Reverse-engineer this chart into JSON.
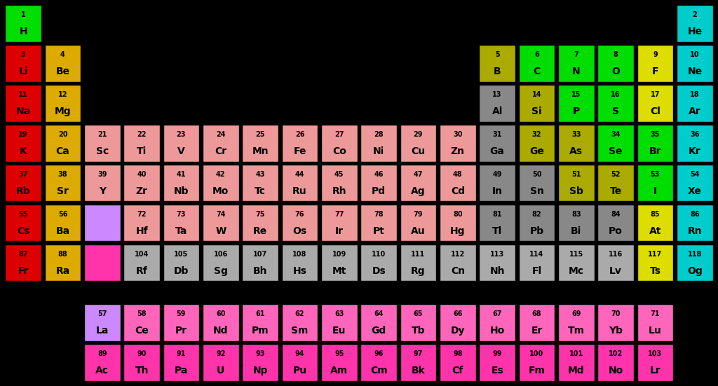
{
  "background": "#000000",
  "cell_edge": "#000000",
  "elements": [
    {
      "num": 1,
      "sym": "H",
      "row": 1,
      "col": 1,
      "color": "#00dd00"
    },
    {
      "num": 2,
      "sym": "He",
      "row": 1,
      "col": 18,
      "color": "#00cccc"
    },
    {
      "num": 3,
      "sym": "Li",
      "row": 2,
      "col": 1,
      "color": "#dd0000"
    },
    {
      "num": 4,
      "sym": "Be",
      "row": 2,
      "col": 2,
      "color": "#ddaa00"
    },
    {
      "num": 5,
      "sym": "B",
      "row": 2,
      "col": 13,
      "color": "#aaaa00"
    },
    {
      "num": 6,
      "sym": "C",
      "row": 2,
      "col": 14,
      "color": "#00dd00"
    },
    {
      "num": 7,
      "sym": "N",
      "row": 2,
      "col": 15,
      "color": "#00dd00"
    },
    {
      "num": 8,
      "sym": "O",
      "row": 2,
      "col": 16,
      "color": "#00dd00"
    },
    {
      "num": 9,
      "sym": "F",
      "row": 2,
      "col": 17,
      "color": "#dddd00"
    },
    {
      "num": 10,
      "sym": "Ne",
      "row": 2,
      "col": 18,
      "color": "#00cccc"
    },
    {
      "num": 11,
      "sym": "Na",
      "row": 3,
      "col": 1,
      "color": "#dd0000"
    },
    {
      "num": 12,
      "sym": "Mg",
      "row": 3,
      "col": 2,
      "color": "#ddaa00"
    },
    {
      "num": 13,
      "sym": "Al",
      "row": 3,
      "col": 13,
      "color": "#888888"
    },
    {
      "num": 14,
      "sym": "Si",
      "row": 3,
      "col": 14,
      "color": "#aaaa00"
    },
    {
      "num": 15,
      "sym": "P",
      "row": 3,
      "col": 15,
      "color": "#00dd00"
    },
    {
      "num": 16,
      "sym": "S",
      "row": 3,
      "col": 16,
      "color": "#00dd00"
    },
    {
      "num": 17,
      "sym": "Cl",
      "row": 3,
      "col": 17,
      "color": "#dddd00"
    },
    {
      "num": 18,
      "sym": "Ar",
      "row": 3,
      "col": 18,
      "color": "#00cccc"
    },
    {
      "num": 19,
      "sym": "K",
      "row": 4,
      "col": 1,
      "color": "#dd0000"
    },
    {
      "num": 20,
      "sym": "Ca",
      "row": 4,
      "col": 2,
      "color": "#ddaa00"
    },
    {
      "num": 21,
      "sym": "Sc",
      "row": 4,
      "col": 3,
      "color": "#ee9999"
    },
    {
      "num": 22,
      "sym": "Ti",
      "row": 4,
      "col": 4,
      "color": "#ee9999"
    },
    {
      "num": 23,
      "sym": "V",
      "row": 4,
      "col": 5,
      "color": "#ee9999"
    },
    {
      "num": 24,
      "sym": "Cr",
      "row": 4,
      "col": 6,
      "color": "#ee9999"
    },
    {
      "num": 25,
      "sym": "Mn",
      "row": 4,
      "col": 7,
      "color": "#ee9999"
    },
    {
      "num": 26,
      "sym": "Fe",
      "row": 4,
      "col": 8,
      "color": "#ee9999"
    },
    {
      "num": 27,
      "sym": "Co",
      "row": 4,
      "col": 9,
      "color": "#ee9999"
    },
    {
      "num": 28,
      "sym": "Ni",
      "row": 4,
      "col": 10,
      "color": "#ee9999"
    },
    {
      "num": 29,
      "sym": "Cu",
      "row": 4,
      "col": 11,
      "color": "#ee9999"
    },
    {
      "num": 30,
      "sym": "Zn",
      "row": 4,
      "col": 12,
      "color": "#ee9999"
    },
    {
      "num": 31,
      "sym": "Ga",
      "row": 4,
      "col": 13,
      "color": "#888888"
    },
    {
      "num": 32,
      "sym": "Ge",
      "row": 4,
      "col": 14,
      "color": "#aaaa00"
    },
    {
      "num": 33,
      "sym": "As",
      "row": 4,
      "col": 15,
      "color": "#aaaa00"
    },
    {
      "num": 34,
      "sym": "Se",
      "row": 4,
      "col": 16,
      "color": "#00dd00"
    },
    {
      "num": 35,
      "sym": "Br",
      "row": 4,
      "col": 17,
      "color": "#00dd00"
    },
    {
      "num": 36,
      "sym": "Kr",
      "row": 4,
      "col": 18,
      "color": "#00cccc"
    },
    {
      "num": 37,
      "sym": "Rb",
      "row": 5,
      "col": 1,
      "color": "#dd0000"
    },
    {
      "num": 38,
      "sym": "Sr",
      "row": 5,
      "col": 2,
      "color": "#ddaa00"
    },
    {
      "num": 39,
      "sym": "Y",
      "row": 5,
      "col": 3,
      "color": "#ee9999"
    },
    {
      "num": 40,
      "sym": "Zr",
      "row": 5,
      "col": 4,
      "color": "#ee9999"
    },
    {
      "num": 41,
      "sym": "Nb",
      "row": 5,
      "col": 5,
      "color": "#ee9999"
    },
    {
      "num": 42,
      "sym": "Mo",
      "row": 5,
      "col": 6,
      "color": "#ee9999"
    },
    {
      "num": 43,
      "sym": "Tc",
      "row": 5,
      "col": 7,
      "color": "#ee9999"
    },
    {
      "num": 44,
      "sym": "Ru",
      "row": 5,
      "col": 8,
      "color": "#ee9999"
    },
    {
      "num": 45,
      "sym": "Rh",
      "row": 5,
      "col": 9,
      "color": "#ee9999"
    },
    {
      "num": 46,
      "sym": "Pd",
      "row": 5,
      "col": 10,
      "color": "#ee9999"
    },
    {
      "num": 47,
      "sym": "Ag",
      "row": 5,
      "col": 11,
      "color": "#ee9999"
    },
    {
      "num": 48,
      "sym": "Cd",
      "row": 5,
      "col": 12,
      "color": "#ee9999"
    },
    {
      "num": 49,
      "sym": "In",
      "row": 5,
      "col": 13,
      "color": "#888888"
    },
    {
      "num": 50,
      "sym": "Sn",
      "row": 5,
      "col": 14,
      "color": "#888888"
    },
    {
      "num": 51,
      "sym": "Sb",
      "row": 5,
      "col": 15,
      "color": "#aaaa00"
    },
    {
      "num": 52,
      "sym": "Te",
      "row": 5,
      "col": 16,
      "color": "#aaaa00"
    },
    {
      "num": 53,
      "sym": "I",
      "row": 5,
      "col": 17,
      "color": "#00dd00"
    },
    {
      "num": 54,
      "sym": "Xe",
      "row": 5,
      "col": 18,
      "color": "#00cccc"
    },
    {
      "num": 55,
      "sym": "Cs",
      "row": 6,
      "col": 1,
      "color": "#dd0000"
    },
    {
      "num": 56,
      "sym": "Ba",
      "row": 6,
      "col": 2,
      "color": "#ddaa00"
    },
    {
      "num": 72,
      "sym": "Hf",
      "row": 6,
      "col": 4,
      "color": "#ee9999"
    },
    {
      "num": 73,
      "sym": "Ta",
      "row": 6,
      "col": 5,
      "color": "#ee9999"
    },
    {
      "num": 74,
      "sym": "W",
      "row": 6,
      "col": 6,
      "color": "#ee9999"
    },
    {
      "num": 75,
      "sym": "Re",
      "row": 6,
      "col": 7,
      "color": "#ee9999"
    },
    {
      "num": 76,
      "sym": "Os",
      "row": 6,
      "col": 8,
      "color": "#ee9999"
    },
    {
      "num": 77,
      "sym": "Ir",
      "row": 6,
      "col": 9,
      "color": "#ee9999"
    },
    {
      "num": 78,
      "sym": "Pt",
      "row": 6,
      "col": 10,
      "color": "#ee9999"
    },
    {
      "num": 79,
      "sym": "Au",
      "row": 6,
      "col": 11,
      "color": "#ee9999"
    },
    {
      "num": 80,
      "sym": "Hg",
      "row": 6,
      "col": 12,
      "color": "#ee9999"
    },
    {
      "num": 81,
      "sym": "Tl",
      "row": 6,
      "col": 13,
      "color": "#888888"
    },
    {
      "num": 82,
      "sym": "Pb",
      "row": 6,
      "col": 14,
      "color": "#888888"
    },
    {
      "num": 83,
      "sym": "Bi",
      "row": 6,
      "col": 15,
      "color": "#888888"
    },
    {
      "num": 84,
      "sym": "Po",
      "row": 6,
      "col": 16,
      "color": "#888888"
    },
    {
      "num": 85,
      "sym": "At",
      "row": 6,
      "col": 17,
      "color": "#dddd00"
    },
    {
      "num": 86,
      "sym": "Rn",
      "row": 6,
      "col": 18,
      "color": "#00cccc"
    },
    {
      "num": 87,
      "sym": "Fr",
      "row": 7,
      "col": 1,
      "color": "#dd0000"
    },
    {
      "num": 88,
      "sym": "Ra",
      "row": 7,
      "col": 2,
      "color": "#ddaa00"
    },
    {
      "num": 104,
      "sym": "Rf",
      "row": 7,
      "col": 4,
      "color": "#aaaaaa"
    },
    {
      "num": 105,
      "sym": "Db",
      "row": 7,
      "col": 5,
      "color": "#aaaaaa"
    },
    {
      "num": 106,
      "sym": "Sg",
      "row": 7,
      "col": 6,
      "color": "#aaaaaa"
    },
    {
      "num": 107,
      "sym": "Bh",
      "row": 7,
      "col": 7,
      "color": "#aaaaaa"
    },
    {
      "num": 108,
      "sym": "Hs",
      "row": 7,
      "col": 8,
      "color": "#aaaaaa"
    },
    {
      "num": 109,
      "sym": "Mt",
      "row": 7,
      "col": 9,
      "color": "#aaaaaa"
    },
    {
      "num": 110,
      "sym": "Ds",
      "row": 7,
      "col": 10,
      "color": "#aaaaaa"
    },
    {
      "num": 111,
      "sym": "Rg",
      "row": 7,
      "col": 11,
      "color": "#aaaaaa"
    },
    {
      "num": 112,
      "sym": "Cn",
      "row": 7,
      "col": 12,
      "color": "#aaaaaa"
    },
    {
      "num": 113,
      "sym": "Nh",
      "row": 7,
      "col": 13,
      "color": "#aaaaaa"
    },
    {
      "num": 114,
      "sym": "Fl",
      "row": 7,
      "col": 14,
      "color": "#aaaaaa"
    },
    {
      "num": 115,
      "sym": "Mc",
      "row": 7,
      "col": 15,
      "color": "#aaaaaa"
    },
    {
      "num": 116,
      "sym": "Lv",
      "row": 7,
      "col": 16,
      "color": "#aaaaaa"
    },
    {
      "num": 117,
      "sym": "Ts",
      "row": 7,
      "col": 17,
      "color": "#dddd00"
    },
    {
      "num": 118,
      "sym": "Og",
      "row": 7,
      "col": 18,
      "color": "#00cccc"
    },
    {
      "num": 57,
      "sym": "La",
      "row": 9,
      "col": 3,
      "color": "#cc88ff"
    },
    {
      "num": 58,
      "sym": "Ce",
      "row": 9,
      "col": 4,
      "color": "#ff66bb"
    },
    {
      "num": 59,
      "sym": "Pr",
      "row": 9,
      "col": 5,
      "color": "#ff66bb"
    },
    {
      "num": 60,
      "sym": "Nd",
      "row": 9,
      "col": 6,
      "color": "#ff66bb"
    },
    {
      "num": 61,
      "sym": "Pm",
      "row": 9,
      "col": 7,
      "color": "#ff66bb"
    },
    {
      "num": 62,
      "sym": "Sm",
      "row": 9,
      "col": 8,
      "color": "#ff66bb"
    },
    {
      "num": 63,
      "sym": "Eu",
      "row": 9,
      "col": 9,
      "color": "#ff66bb"
    },
    {
      "num": 64,
      "sym": "Gd",
      "row": 9,
      "col": 10,
      "color": "#ff66bb"
    },
    {
      "num": 65,
      "sym": "Tb",
      "row": 9,
      "col": 11,
      "color": "#ff66bb"
    },
    {
      "num": 66,
      "sym": "Dy",
      "row": 9,
      "col": 12,
      "color": "#ff66bb"
    },
    {
      "num": 67,
      "sym": "Ho",
      "row": 9,
      "col": 13,
      "color": "#ff66bb"
    },
    {
      "num": 68,
      "sym": "Er",
      "row": 9,
      "col": 14,
      "color": "#ff66bb"
    },
    {
      "num": 69,
      "sym": "Tm",
      "row": 9,
      "col": 15,
      "color": "#ff66bb"
    },
    {
      "num": 70,
      "sym": "Yb",
      "row": 9,
      "col": 16,
      "color": "#ff66bb"
    },
    {
      "num": 71,
      "sym": "Lu",
      "row": 9,
      "col": 17,
      "color": "#ff66bb"
    },
    {
      "num": 89,
      "sym": "Ac",
      "row": 10,
      "col": 3,
      "color": "#ff33aa"
    },
    {
      "num": 90,
      "sym": "Th",
      "row": 10,
      "col": 4,
      "color": "#ff33aa"
    },
    {
      "num": 91,
      "sym": "Pa",
      "row": 10,
      "col": 5,
      "color": "#ff33aa"
    },
    {
      "num": 92,
      "sym": "U",
      "row": 10,
      "col": 6,
      "color": "#ff33aa"
    },
    {
      "num": 93,
      "sym": "Np",
      "row": 10,
      "col": 7,
      "color": "#ff33aa"
    },
    {
      "num": 94,
      "sym": "Pu",
      "row": 10,
      "col": 8,
      "color": "#ff33aa"
    },
    {
      "num": 95,
      "sym": "Am",
      "row": 10,
      "col": 9,
      "color": "#ff33aa"
    },
    {
      "num": 96,
      "sym": "Cm",
      "row": 10,
      "col": 10,
      "color": "#ff33aa"
    },
    {
      "num": 97,
      "sym": "Bk",
      "row": 10,
      "col": 11,
      "color": "#ff33aa"
    },
    {
      "num": 98,
      "sym": "Cf",
      "row": 10,
      "col": 12,
      "color": "#ff33aa"
    },
    {
      "num": 99,
      "sym": "Es",
      "row": 10,
      "col": 13,
      "color": "#ff33aa"
    },
    {
      "num": 100,
      "sym": "Fm",
      "row": 10,
      "col": 14,
      "color": "#ff33aa"
    },
    {
      "num": 101,
      "sym": "Md",
      "row": 10,
      "col": 15,
      "color": "#ff33aa"
    },
    {
      "num": 102,
      "sym": "No",
      "row": 10,
      "col": 16,
      "color": "#ff33aa"
    },
    {
      "num": 103,
      "sym": "Lr",
      "row": 10,
      "col": 17,
      "color": "#ff33aa"
    },
    {
      "num": 0,
      "sym": "",
      "row": 6,
      "col": 3,
      "color": "#cc88ff",
      "placeholder": true
    },
    {
      "num": 0,
      "sym": "",
      "row": 7,
      "col": 3,
      "color": "#ff33aa",
      "placeholder": true
    }
  ],
  "figwidth": 10.24,
  "figheight": 5.51,
  "dpi": 100
}
